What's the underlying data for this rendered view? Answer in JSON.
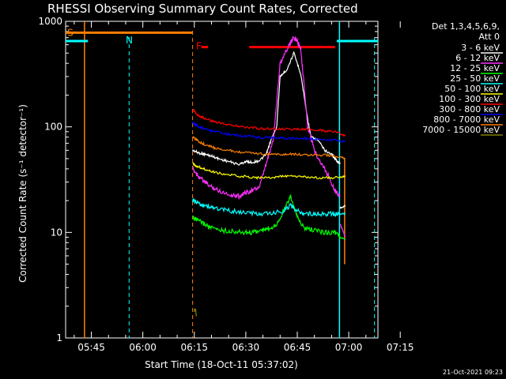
{
  "chart_data": {
    "type": "line",
    "title": "RHESSI Observing Summary Count Rates, Corrected",
    "xlabel": "Start Time (18-Oct-11 05:37:02)",
    "ylabel": "Corrected Count Rate (s⁻¹ detector⁻¹)",
    "y_scale": "log",
    "ylim": [
      1,
      1000
    ],
    "xlim_minutes": [
      -7.5,
      83.5
    ],
    "x_ticks": [
      {
        "label": "05:45",
        "min": 0
      },
      {
        "label": "06:00",
        "min": 15
      },
      {
        "label": "06:15",
        "min": 30
      },
      {
        "label": "06:30",
        "min": 45
      },
      {
        "label": "06:45",
        "min": 60
      },
      {
        "label": "07:00",
        "min": 75
      },
      {
        "label": "07:15",
        "min": 90
      }
    ],
    "y_ticks": [
      {
        "label": "1",
        "value": 1
      },
      {
        "label": "10",
        "value": 10
      },
      {
        "label": "100",
        "value": 100
      },
      {
        "label": "1000",
        "value": 1000
      }
    ],
    "legend_header": [
      "Det 1,3,4,5,6,9,",
      "Att 0"
    ],
    "legend_placement": "right",
    "series": [
      {
        "name": "3 - 6 keV",
        "color": "#ffffff",
        "x": [
          29.5,
          31,
          33,
          35,
          37,
          40,
          43,
          45,
          47,
          49,
          51,
          52,
          54,
          55,
          57,
          59,
          61,
          63,
          64,
          66,
          68,
          70,
          71,
          72,
          72.5
        ],
        "y": [
          60,
          57,
          55,
          53,
          50,
          47,
          44,
          47,
          46,
          48,
          55,
          70,
          100,
          300,
          350,
          500,
          320,
          120,
          80,
          75,
          60,
          55,
          50,
          46,
          45
        ],
        "post_x": [
          72.5,
          74
        ],
        "post_y": [
          17,
          18
        ]
      },
      {
        "name": "6 - 12 keV",
        "color": "#ff30ff",
        "x": [
          29.5,
          31,
          33,
          35,
          37,
          40,
          43,
          45,
          47,
          49,
          51,
          53,
          55,
          57,
          59,
          60,
          61,
          62,
          63,
          65,
          67,
          69,
          71,
          72.5
        ],
        "y": [
          40,
          35,
          30,
          27,
          25,
          23,
          22,
          24,
          25,
          27,
          45,
          75,
          400,
          550,
          700,
          650,
          550,
          250,
          100,
          60,
          45,
          35,
          25,
          22
        ],
        "post_x": [
          72.5,
          74
        ],
        "post_y": [
          12,
          9
        ]
      },
      {
        "name": "12 - 25 keV",
        "color": "#00ff00",
        "x": [
          29.5,
          31,
          33,
          35,
          38,
          41,
          44,
          47,
          50,
          52,
          54,
          56,
          58,
          60,
          62,
          65,
          68,
          71,
          72.5
        ],
        "y": [
          14,
          13,
          12,
          11,
          10.5,
          10.2,
          10,
          10,
          10.5,
          11,
          12,
          16,
          22,
          14,
          11,
          10.5,
          10,
          10,
          9
        ],
        "post_x": [
          72.5,
          74
        ],
        "post_y": [
          9,
          8.5
        ]
      },
      {
        "name": "25 - 50 keV",
        "color": "#00ffff",
        "x": [
          29.5,
          31,
          33,
          36,
          40,
          44,
          48,
          52,
          56,
          58,
          60,
          62,
          65,
          68,
          71,
          72.5
        ],
        "y": [
          20,
          19,
          18,
          17,
          16,
          15.5,
          15,
          15,
          16,
          18,
          16,
          15,
          15,
          15,
          15,
          15
        ],
        "post_x": [
          72.5,
          74
        ],
        "post_y": [
          15,
          15
        ]
      },
      {
        "name": "50 - 100 keV",
        "color": "#ffff00",
        "x": [
          29.5,
          31,
          33,
          36,
          40,
          44,
          48,
          52,
          56,
          60,
          64,
          68,
          72.5
        ],
        "y": [
          45,
          42,
          40,
          37,
          35,
          34,
          33,
          33,
          34,
          34,
          33,
          33,
          33
        ],
        "post_x": [
          72.5,
          74
        ],
        "post_y": [
          33,
          34
        ]
      },
      {
        "name": "100 - 300 keV",
        "color": "#ff0000",
        "x": [
          29.5,
          31,
          33,
          36,
          40,
          44,
          48,
          52,
          56,
          60,
          64,
          68,
          72.5
        ],
        "y": [
          145,
          130,
          120,
          112,
          105,
          100,
          97,
          96,
          95,
          95,
          94,
          92,
          88
        ],
        "post_x": [
          72.5,
          74
        ],
        "post_y": [
          85,
          83
        ]
      },
      {
        "name": "300 - 800 keV",
        "color": "#0000ff",
        "x": [
          29.5,
          31,
          33,
          36,
          40,
          44,
          48,
          52,
          56,
          60,
          64,
          68,
          72.5
        ],
        "y": [
          110,
          102,
          95,
          90,
          85,
          82,
          80,
          79,
          78,
          78,
          77,
          76,
          74
        ],
        "post_x": [
          72.5,
          74
        ],
        "post_y": [
          73,
          73
        ]
      },
      {
        "name": "800 - 7000 keV",
        "color": "#ff8000",
        "x": [
          29.5,
          31,
          33,
          36,
          40,
          44,
          48,
          52,
          56,
          60,
          64,
          68,
          72.5
        ],
        "y": [
          80,
          74,
          68,
          63,
          60,
          57,
          56,
          55,
          55,
          55,
          54,
          54,
          52
        ],
        "post_x": [
          72.5,
          74
        ],
        "post_y": [
          52,
          50
        ]
      },
      {
        "name": "7000 - 15000 keV",
        "color": "#808000",
        "x": [
          30,
          30.3,
          30.6
        ],
        "y": [
          1.8,
          1.9,
          1.6
        ],
        "post_x": [],
        "post_y": []
      }
    ],
    "annotations": [
      {
        "label": "S",
        "color": "#ff8000"
      },
      {
        "label": "N",
        "color": "#00ffff"
      },
      {
        "label": "F",
        "color": "#ff0000"
      }
    ],
    "markers": {
      "saa_bar": {
        "x": [
          -7.5,
          29.5
        ],
        "y": 780,
        "color": "#ff8000"
      },
      "night_bars": [
        {
          "x": [
            -7.5,
            -1
          ],
          "y": 650,
          "color": "#00ffff"
        },
        {
          "x": [
            71.5,
            83.5
          ],
          "y": 650,
          "color": "#00ffff"
        }
      ],
      "flare_bars": [
        {
          "x": [
            32,
            34
          ],
          "y": 570,
          "color": "#ff0000"
        },
        {
          "x": [
            46,
            71
          ],
          "y": 570,
          "color": "#ff0000"
        }
      ],
      "saa_solid_lines": [
        {
          "min": -2,
          "color": "#ff8000"
        }
      ],
      "saa_dashed_lines": [
        {
          "min": 29.5,
          "color": "#ff8000"
        }
      ],
      "night_dashed_lines": [
        {
          "min": 11,
          "color": "#00ffff"
        },
        {
          "min": 82.5,
          "color": "#00ffff"
        }
      ],
      "night_solid_lines": [
        {
          "min": 72.3,
          "color": "#00ffff"
        }
      ],
      "orange_solid_lines": [
        {
          "min": 73.8,
          "color": "#ff8000"
        }
      ]
    }
  },
  "footer": {
    "timestamp": "21-Oct-2021 09:23"
  }
}
